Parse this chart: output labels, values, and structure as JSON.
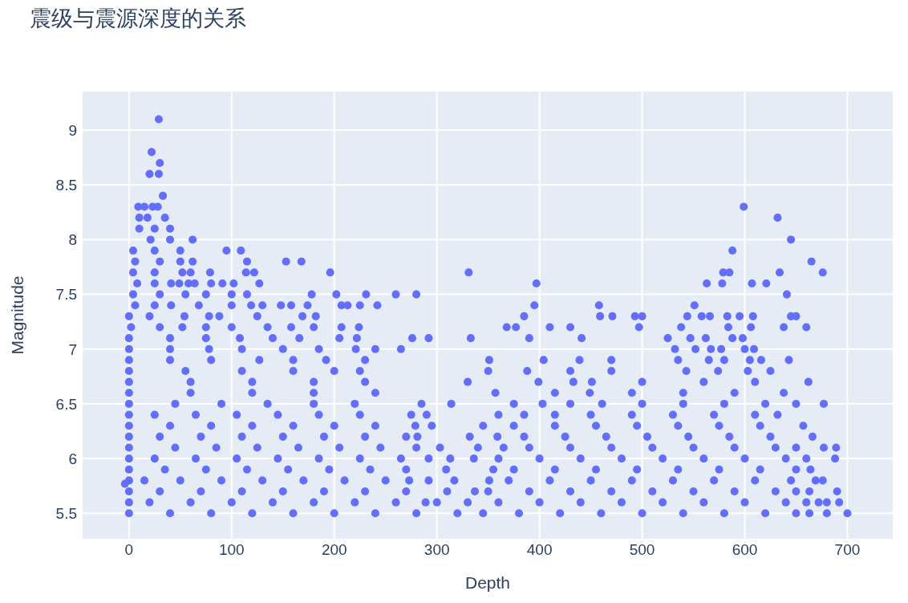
{
  "chart_data": {
    "type": "scatter",
    "title": "震级与震源深度的关系",
    "xlabel": "Depth",
    "ylabel": "Magnitude",
    "color": "#636efa",
    "marker": "circle",
    "grid": true,
    "xlim": [
      -46,
      745
    ],
    "xticks": [
      0,
      100,
      200,
      300,
      400,
      500,
      600,
      700
    ],
    "ylim": [
      5.26,
      9.36
    ],
    "yticks": [
      5.5,
      6,
      6.5,
      7,
      7.5,
      8,
      8.5,
      9
    ],
    "x": [
      0,
      40,
      80,
      120,
      160,
      200,
      240,
      280,
      320,
      345,
      380,
      420,
      460,
      500,
      540,
      580,
      620,
      650,
      663,
      680,
      700,
      0,
      20,
      60,
      100,
      140,
      180,
      220,
      260,
      289,
      300,
      330,
      360,
      400,
      440,
      480,
      520,
      560,
      600,
      640,
      660,
      672,
      680,
      692,
      0,
      30,
      70,
      110,
      150,
      190,
      230,
      270,
      310,
      337,
      350,
      390,
      430,
      470,
      510,
      550,
      590,
      630,
      650,
      663,
      690,
      0,
      15,
      50,
      90,
      130,
      170,
      210,
      250,
      273,
      292,
      317,
      351,
      370,
      410,
      450,
      490,
      530,
      570,
      610,
      645,
      669,
      676,
      0,
      35,
      75,
      115,
      155,
      195,
      235,
      270,
      309,
      355,
      375,
      415,
      455,
      495,
      535,
      575,
      615,
      650,
      664,
      0,
      25,
      65,
      105,
      145,
      185,
      225,
      265,
      292,
      313,
      336,
      360,
      400,
      440,
      480,
      520,
      560,
      600,
      640,
      660,
      688,
      0,
      45,
      85,
      125,
      165,
      205,
      245,
      280,
      303,
      340,
      365,
      390,
      430,
      470,
      510,
      550,
      590,
      630,
      650,
      677,
      689,
      0,
      30,
      70,
      110,
      150,
      190,
      230,
      270,
      281,
      332,
      359,
      385,
      425,
      465,
      505,
      545,
      585,
      625,
      666,
      0,
      40,
      80,
      120,
      160,
      200,
      240,
      279,
      295,
      345,
      375,
      415,
      455,
      495,
      535,
      575,
      615,
      657,
      0,
      25,
      65,
      105,
      145,
      185,
      225,
      275,
      290,
      360,
      385,
      415,
      450,
      490,
      530,
      570,
      610,
      632,
      0,
      45,
      90,
      135,
      180,
      220,
      285,
      314,
      375,
      403,
      430,
      461,
      500,
      540,
      580,
      620,
      650,
      677,
      0,
      60,
      120,
      180,
      240,
      357,
      415,
      449,
      490,
      540,
      590,
      638,
      0,
      60,
      120,
      180,
      230,
      330,
      399,
      433,
      451,
      500,
      560,
      610,
      662,
      0,
      55,
      110,
      160,
      200,
      225,
      350,
      388,
      430,
      470,
      543,
      574,
      603,
      625,
      0,
      40,
      80,
      127,
      160,
      192,
      230,
      351,
      404,
      439,
      470,
      535,
      565,
      580,
      605,
      616,
      643,
      0,
      40,
      78,
      110,
      150,
      185,
      221,
      240,
      265,
      532,
      552,
      567,
      577,
      600,
      609,
      0,
      40,
      75,
      108,
      140,
      166,
      205,
      222,
      276,
      292,
      333,
      390,
      441,
      525,
      547,
      562,
      588,
      598,
      2,
      30,
      52,
      75,
      100,
      135,
      158,
      180,
      207,
      224,
      368,
      377,
      410,
      430,
      497,
      538,
      584,
      606,
      638,
      660,
      0,
      20,
      54,
      78,
      88,
      125,
      169,
      182,
      385,
      459,
      471,
      493,
      500,
      544,
      558,
      566,
      583,
      595,
      608,
      645,
      650,
      6,
      25,
      41,
      68,
      100,
      119,
      130,
      148,
      158,
      174,
      207,
      213,
      225,
      242,
      395,
      458,
      551,
      4,
      30,
      55,
      75,
      100,
      115,
      178,
      202,
      231,
      260,
      280,
      641,
      8,
      25,
      41,
      49,
      58,
      64,
      80,
      91,
      102,
      127,
      397,
      563,
      578,
      607,
      621,
      4,
      25,
      52,
      60,
      79,
      114,
      122,
      196,
      331,
      579,
      585,
      634,
      676,
      6,
      30,
      50,
      62,
      115,
      153,
      168,
      665,
      4,
      25,
      50,
      95,
      109,
      588,
      21,
      40,
      62,
      645,
      10,
      25,
      40,
      10,
      18,
      35,
      632,
      9,
      15,
      23,
      28,
      599,
      33,
      20,
      29,
      30,
      22,
      29,
      -4
    ],
    "values": [
      5.5,
      5.5,
      5.5,
      5.5,
      5.5,
      5.5,
      5.5,
      5.5,
      5.5,
      5.5,
      5.5,
      5.5,
      5.5,
      5.5,
      5.5,
      5.5,
      5.5,
      5.5,
      5.5,
      5.5,
      5.5,
      5.6,
      5.6,
      5.6,
      5.6,
      5.6,
      5.6,
      5.6,
      5.6,
      5.6,
      5.6,
      5.6,
      5.6,
      5.6,
      5.6,
      5.6,
      5.6,
      5.6,
      5.6,
      5.6,
      5.6,
      5.6,
      5.6,
      5.6,
      5.7,
      5.7,
      5.7,
      5.7,
      5.7,
      5.7,
      5.7,
      5.7,
      5.7,
      5.7,
      5.7,
      5.7,
      5.7,
      5.7,
      5.7,
      5.7,
      5.7,
      5.7,
      5.7,
      5.7,
      5.7,
      5.8,
      5.8,
      5.8,
      5.8,
      5.8,
      5.8,
      5.8,
      5.8,
      5.8,
      5.8,
      5.8,
      5.8,
      5.8,
      5.8,
      5.8,
      5.8,
      5.8,
      5.8,
      5.8,
      5.8,
      5.8,
      5.8,
      5.9,
      5.9,
      5.9,
      5.9,
      5.9,
      5.9,
      5.9,
      5.9,
      5.9,
      5.9,
      5.9,
      5.9,
      5.9,
      5.9,
      5.9,
      5.9,
      5.9,
      5.9,
      5.9,
      6.0,
      6.0,
      6.0,
      6.0,
      6.0,
      6.0,
      6.0,
      6.0,
      6.0,
      6.0,
      6.0,
      6.0,
      6.0,
      6.0,
      6.0,
      6.0,
      6.0,
      6.0,
      6.0,
      6.0,
      6.0,
      6.1,
      6.1,
      6.1,
      6.1,
      6.1,
      6.1,
      6.1,
      6.1,
      6.1,
      6.1,
      6.1,
      6.1,
      6.1,
      6.1,
      6.1,
      6.1,
      6.1,
      6.1,
      6.1,
      6.1,
      6.1,
      6.2,
      6.2,
      6.2,
      6.2,
      6.2,
      6.2,
      6.2,
      6.2,
      6.2,
      6.2,
      6.2,
      6.2,
      6.2,
      6.2,
      6.2,
      6.2,
      6.2,
      6.2,
      6.2,
      6.3,
      6.3,
      6.3,
      6.3,
      6.3,
      6.3,
      6.3,
      6.3,
      6.3,
      6.3,
      6.3,
      6.3,
      6.3,
      6.3,
      6.3,
      6.3,
      6.3,
      6.3,
      6.4,
      6.4,
      6.4,
      6.4,
      6.4,
      6.4,
      6.4,
      6.4,
      6.4,
      6.4,
      6.4,
      6.4,
      6.4,
      6.4,
      6.4,
      6.4,
      6.4,
      6.4,
      6.5,
      6.5,
      6.5,
      6.5,
      6.5,
      6.5,
      6.5,
      6.5,
      6.5,
      6.5,
      6.5,
      6.5,
      6.5,
      6.5,
      6.5,
      6.5,
      6.5,
      6.5,
      6.6,
      6.6,
      6.6,
      6.6,
      6.6,
      6.6,
      6.6,
      6.6,
      6.6,
      6.6,
      6.6,
      6.6,
      6.7,
      6.7,
      6.7,
      6.7,
      6.7,
      6.7,
      6.7,
      6.7,
      6.7,
      6.7,
      6.7,
      6.7,
      6.7,
      6.8,
      6.8,
      6.8,
      6.8,
      6.8,
      6.8,
      6.8,
      6.8,
      6.8,
      6.8,
      6.8,
      6.8,
      6.8,
      6.8,
      6.9,
      6.9,
      6.9,
      6.9,
      6.9,
      6.9,
      6.9,
      6.9,
      6.9,
      6.9,
      6.9,
      6.9,
      6.9,
      6.9,
      6.9,
      6.9,
      6.9,
      7.0,
      7.0,
      7.0,
      7.0,
      7.0,
      7.0,
      7.0,
      7.0,
      7.0,
      7.0,
      7.0,
      7.0,
      7.0,
      7.0,
      7.0,
      7.1,
      7.1,
      7.1,
      7.1,
      7.1,
      7.1,
      7.1,
      7.1,
      7.1,
      7.1,
      7.1,
      7.1,
      7.1,
      7.1,
      7.1,
      7.1,
      7.1,
      7.1,
      7.2,
      7.2,
      7.2,
      7.2,
      7.2,
      7.2,
      7.2,
      7.2,
      7.2,
      7.2,
      7.2,
      7.2,
      7.2,
      7.2,
      7.2,
      7.2,
      7.2,
      7.2,
      7.2,
      7.2,
      7.3,
      7.3,
      7.3,
      7.3,
      7.3,
      7.3,
      7.3,
      7.3,
      7.3,
      7.3,
      7.3,
      7.3,
      7.3,
      7.3,
      7.3,
      7.3,
      7.3,
      7.3,
      7.3,
      7.3,
      7.3,
      7.4,
      7.4,
      7.4,
      7.4,
      7.4,
      7.4,
      7.4,
      7.4,
      7.4,
      7.4,
      7.4,
      7.4,
      7.4,
      7.4,
      7.4,
      7.4,
      7.4,
      7.5,
      7.5,
      7.5,
      7.5,
      7.5,
      7.5,
      7.5,
      7.5,
      7.5,
      7.5,
      7.5,
      7.5,
      7.6,
      7.6,
      7.6,
      7.6,
      7.6,
      7.6,
      7.6,
      7.6,
      7.6,
      7.6,
      7.6,
      7.6,
      7.6,
      7.6,
      7.6,
      7.7,
      7.7,
      7.7,
      7.7,
      7.7,
      7.7,
      7.7,
      7.7,
      7.7,
      7.7,
      7.7,
      7.7,
      7.7,
      7.8,
      7.8,
      7.8,
      7.8,
      7.8,
      7.8,
      7.8,
      7.8,
      7.9,
      7.9,
      7.9,
      7.9,
      7.9,
      7.9,
      8.0,
      8.0,
      8.0,
      8.0,
      8.1,
      8.1,
      8.1,
      8.2,
      8.2,
      8.2,
      8.2,
      8.3,
      8.3,
      8.3,
      8.3,
      8.3,
      8.4,
      8.6,
      8.6,
      8.7,
      8.8,
      9.1,
      5.77
    ]
  }
}
